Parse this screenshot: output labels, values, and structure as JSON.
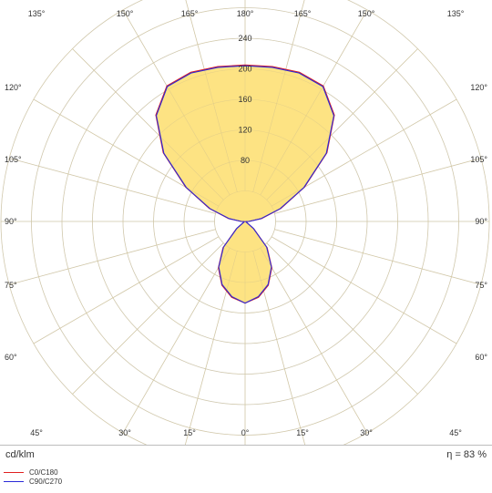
{
  "chart_data": {
    "type": "polar",
    "max_radius": 240,
    "radial_ticks": [
      80,
      120,
      160,
      200,
      240
    ],
    "radial_labels": [
      "80",
      "120",
      "160",
      "200",
      "240"
    ],
    "angle_labels_upper_left": [
      "135°",
      "150°",
      "165°"
    ],
    "angle_labels_upper_center": "180°",
    "angle_labels_upper_right": [
      "165°",
      "150°",
      "135°"
    ],
    "angle_labels_side_left": [
      "120°",
      "105°",
      "90°",
      "75°",
      "60°"
    ],
    "angle_labels_side_right": [
      "120°",
      "105°",
      "90°",
      "75°",
      "60°"
    ],
    "angle_labels_bottom": [
      "45°",
      "30°",
      "15°",
      "0°",
      "15°",
      "30°",
      "45°"
    ],
    "fill_color": "#fde383",
    "angles_deg": [
      0,
      10,
      20,
      30,
      40,
      50,
      60,
      70,
      80,
      90,
      100,
      110,
      120,
      130,
      140,
      150,
      160,
      170,
      180
    ],
    "series": [
      {
        "name": "C0/C180",
        "color": "#e02020",
        "values": [
          107,
          101,
          89,
          70,
          45,
          15,
          2,
          1,
          1,
          5,
          22,
          50,
          90,
          140,
          182,
          205,
          208,
          206,
          205
        ]
      },
      {
        "name": "C90/C270",
        "color": "#2a2ad8",
        "values": [
          107,
          100,
          88,
          69,
          44,
          14,
          2,
          1,
          1,
          5,
          21,
          49,
          89,
          139,
          181,
          204,
          207,
          205,
          204
        ]
      }
    ]
  },
  "footer": {
    "unit": "cd/klm",
    "efficiency": "η = 83 %"
  }
}
